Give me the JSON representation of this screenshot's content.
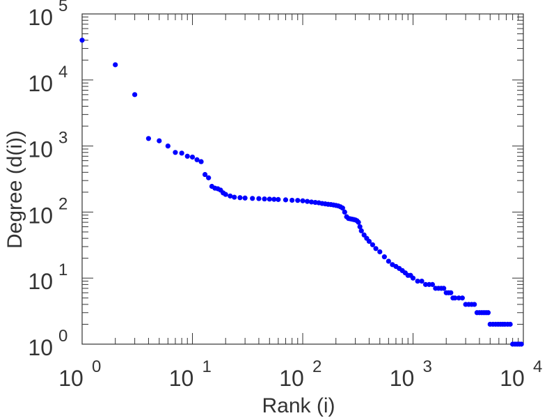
{
  "chart_data": {
    "type": "scatter",
    "title": "",
    "xlabel": "Rank (i)",
    "ylabel": "Degree (d(i))",
    "xscale": "log",
    "yscale": "log",
    "xlim": [
      1,
      10000
    ],
    "ylim": [
      1,
      100000
    ],
    "grid": false,
    "legend": "none",
    "x_ticks": [
      {
        "base": "10",
        "exp": "0"
      },
      {
        "base": "10",
        "exp": "1"
      },
      {
        "base": "10",
        "exp": "2"
      },
      {
        "base": "10",
        "exp": "3"
      },
      {
        "base": "10",
        "exp": "4"
      }
    ],
    "y_ticks": [
      {
        "base": "10",
        "exp": "0"
      },
      {
        "base": "10",
        "exp": "1"
      },
      {
        "base": "10",
        "exp": "2"
      },
      {
        "base": "10",
        "exp": "3"
      },
      {
        "base": "10",
        "exp": "4"
      },
      {
        "base": "10",
        "exp": "5"
      }
    ],
    "marker_color": "#0000ff",
    "series": [
      {
        "points": [
          [
            1,
            40000
          ],
          [
            2,
            17000
          ],
          [
            3,
            6000
          ],
          [
            4,
            1300
          ],
          [
            5,
            1200
          ],
          [
            6,
            1000
          ],
          [
            7,
            800
          ],
          [
            8,
            780
          ],
          [
            9,
            700
          ],
          [
            10,
            680
          ],
          [
            11,
            620
          ],
          [
            12,
            580
          ],
          [
            13,
            370
          ],
          [
            14,
            330
          ],
          [
            15,
            245
          ],
          [
            16,
            230
          ],
          [
            17,
            225
          ],
          [
            18,
            215
          ],
          [
            19,
            195
          ],
          [
            20,
            185
          ],
          [
            22,
            175
          ],
          [
            24,
            168
          ],
          [
            27,
            165
          ],
          [
            30,
            163
          ],
          [
            35,
            161
          ],
          [
            40,
            160
          ],
          [
            45,
            158
          ],
          [
            50,
            157
          ],
          [
            55,
            156
          ],
          [
            60,
            155
          ],
          [
            70,
            153
          ],
          [
            80,
            151
          ],
          [
            90,
            150
          ],
          [
            100,
            148
          ],
          [
            110,
            145
          ],
          [
            120,
            142
          ],
          [
            130,
            140
          ],
          [
            140,
            138
          ],
          [
            150,
            135
          ],
          [
            160,
            133
          ],
          [
            170,
            131
          ],
          [
            180,
            130
          ],
          [
            190,
            128
          ],
          [
            200,
            126
          ],
          [
            210,
            124
          ],
          [
            220,
            120
          ],
          [
            230,
            115
          ],
          [
            240,
            100
          ],
          [
            250,
            85
          ],
          [
            260,
            80
          ],
          [
            270,
            79
          ],
          [
            280,
            78
          ],
          [
            290,
            77
          ],
          [
            300,
            76
          ],
          [
            310,
            74
          ],
          [
            320,
            70
          ],
          [
            330,
            60
          ],
          [
            340,
            52
          ],
          [
            360,
            45
          ],
          [
            380,
            40
          ],
          [
            400,
            36
          ],
          [
            430,
            32
          ],
          [
            460,
            28
          ],
          [
            500,
            25
          ],
          [
            550,
            21
          ],
          [
            600,
            18
          ],
          [
            650,
            16
          ],
          [
            700,
            15
          ],
          [
            750,
            14
          ],
          [
            800,
            13
          ],
          [
            850,
            12
          ],
          [
            900,
            11
          ],
          [
            950,
            11
          ],
          [
            1000,
            10
          ],
          [
            1100,
            9
          ],
          [
            1200,
            9
          ],
          [
            1300,
            8
          ],
          [
            1400,
            8
          ],
          [
            1500,
            8
          ],
          [
            1600,
            7
          ],
          [
            1700,
            7
          ],
          [
            1800,
            7
          ],
          [
            1900,
            7
          ],
          [
            2000,
            6
          ],
          [
            2100,
            6
          ],
          [
            2200,
            6
          ],
          [
            2300,
            5
          ],
          [
            2400,
            5
          ],
          [
            2600,
            5
          ],
          [
            2800,
            5
          ],
          [
            3000,
            4
          ],
          [
            3200,
            4
          ],
          [
            3400,
            4
          ],
          [
            3600,
            4
          ],
          [
            3800,
            3
          ],
          [
            4000,
            3
          ],
          [
            4200,
            3
          ],
          [
            4400,
            3
          ],
          [
            4600,
            3
          ],
          [
            4800,
            3
          ],
          [
            5000,
            2
          ],
          [
            5300,
            2
          ],
          [
            5600,
            2
          ],
          [
            5900,
            2
          ],
          [
            6200,
            2
          ],
          [
            6500,
            2
          ],
          [
            6800,
            2
          ],
          [
            7200,
            2
          ],
          [
            7600,
            2
          ],
          [
            8000,
            1
          ],
          [
            8400,
            1
          ],
          [
            8800,
            1
          ],
          [
            9200,
            1
          ],
          [
            9600,
            1
          ]
        ]
      }
    ]
  }
}
